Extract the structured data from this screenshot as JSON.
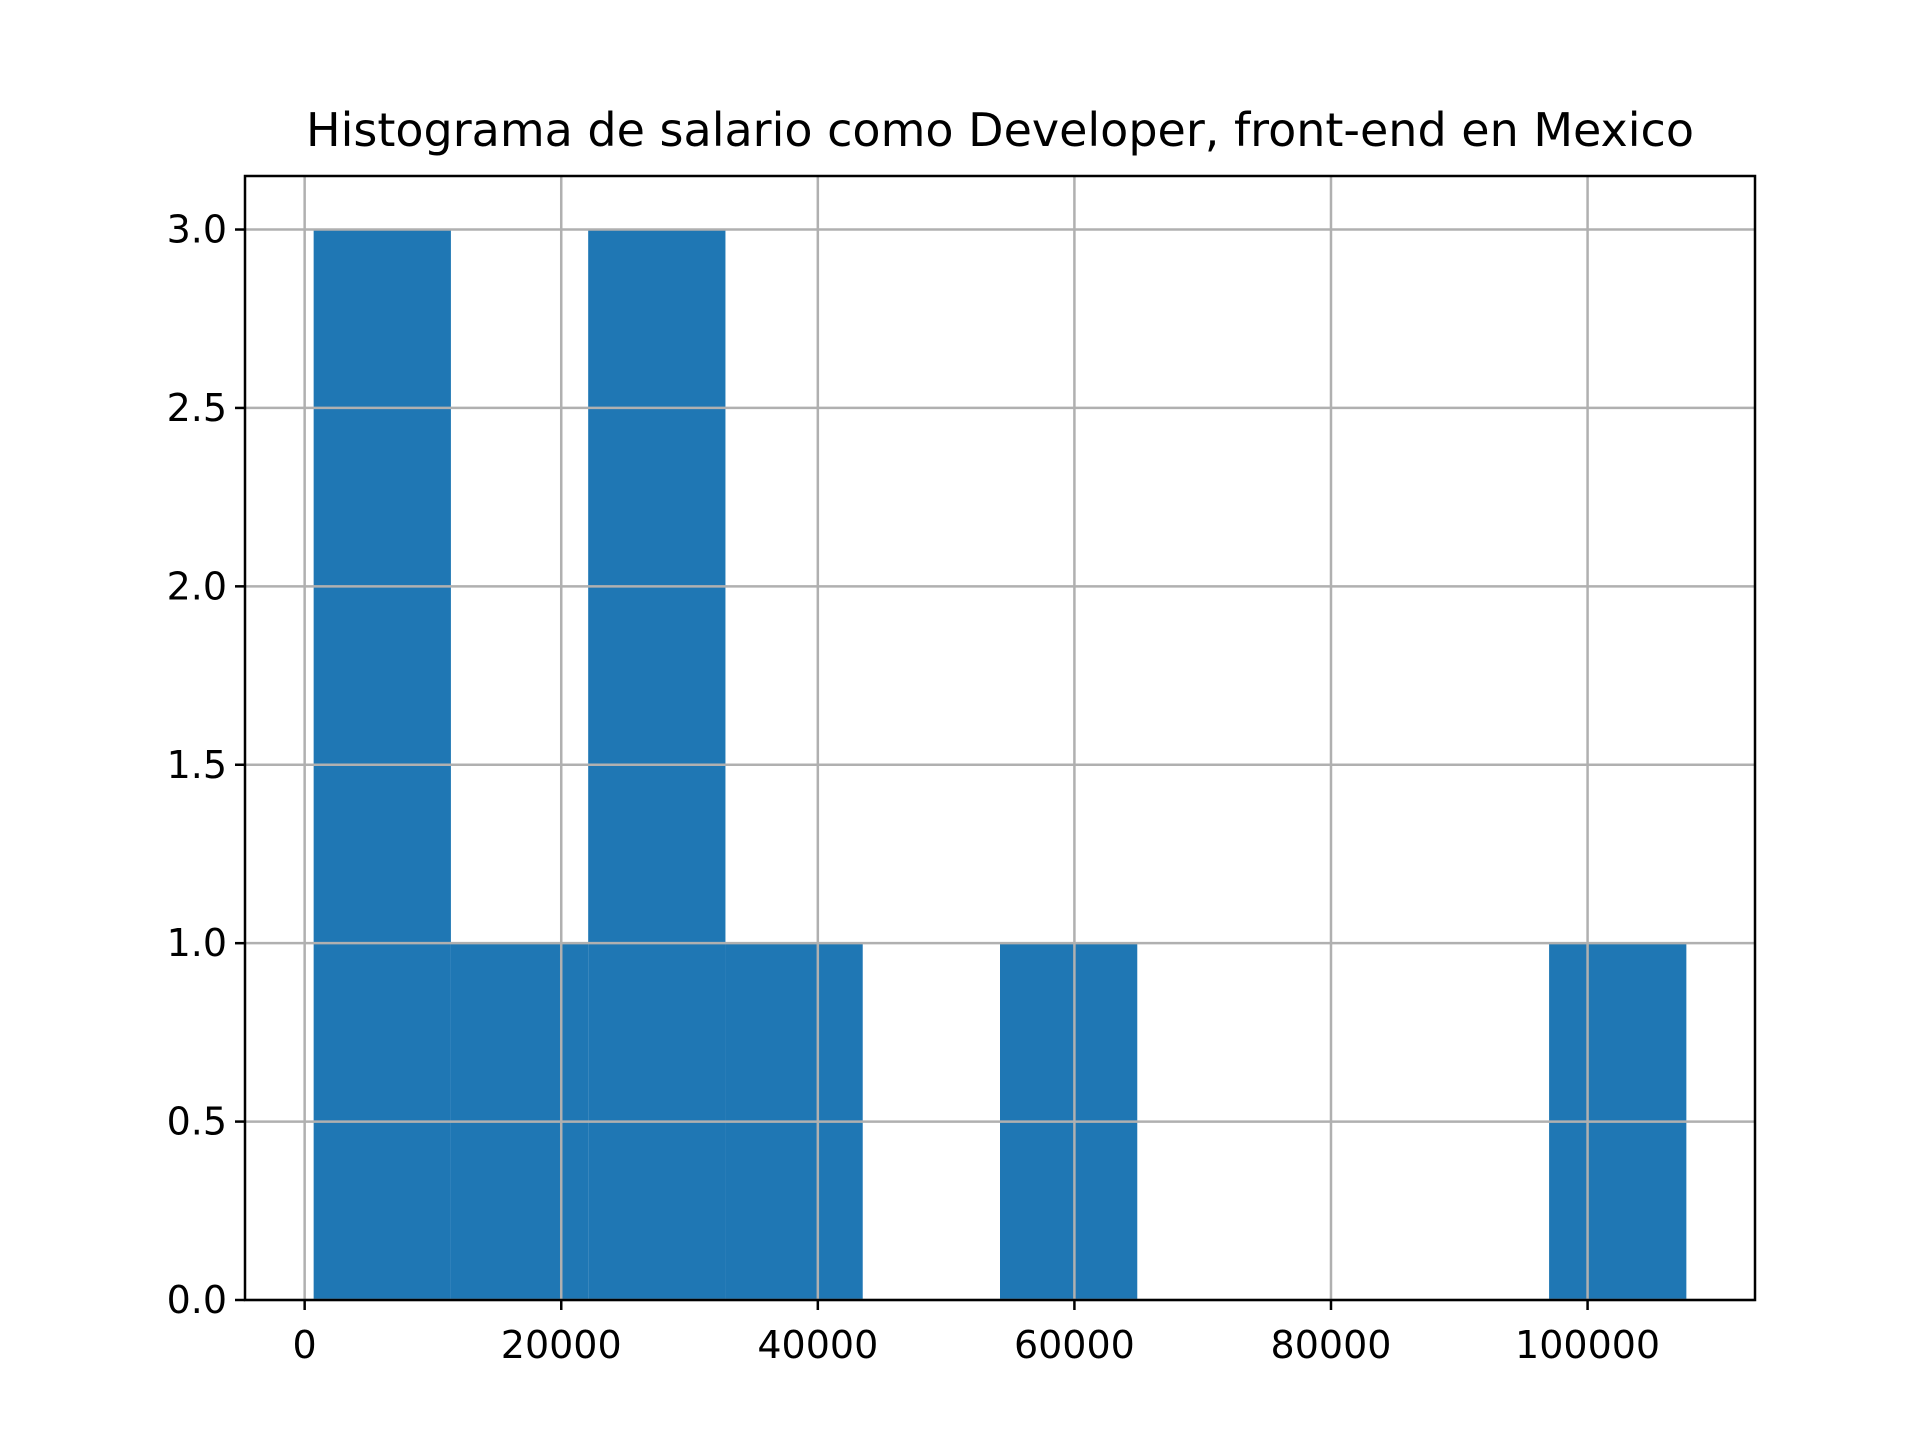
{
  "chart_data": {
    "type": "bar",
    "title": "Histograma de salario como Developer, front-end en Mexico",
    "xlabel": "",
    "ylabel": "",
    "bins": [
      {
        "x0": 700,
        "x1": 11400,
        "count": 3
      },
      {
        "x0": 11400,
        "x1": 22100,
        "count": 1
      },
      {
        "x0": 22100,
        "x1": 32800,
        "count": 3
      },
      {
        "x0": 32800,
        "x1": 43500,
        "count": 1
      },
      {
        "x0": 43500,
        "x1": 54200,
        "count": 0
      },
      {
        "x0": 54200,
        "x1": 64900,
        "count": 1
      },
      {
        "x0": 64900,
        "x1": 75600,
        "count": 0
      },
      {
        "x0": 75600,
        "x1": 86300,
        "count": 0
      },
      {
        "x0": 86300,
        "x1": 97000,
        "count": 0
      },
      {
        "x0": 97000,
        "x1": 107700,
        "count": 1
      }
    ],
    "xlim": [
      -4650,
      113050
    ],
    "ylim": [
      0,
      3.15
    ],
    "x_ticks": [
      0,
      20000,
      40000,
      60000,
      80000,
      100000
    ],
    "x_tick_labels": [
      "0",
      "20000",
      "40000",
      "60000",
      "80000",
      "100000"
    ],
    "y_ticks": [
      0,
      0.5,
      1,
      1.5,
      2,
      2.5,
      3
    ],
    "y_tick_labels": [
      "0.0",
      "0.5",
      "1.0",
      "1.5",
      "2.0",
      "2.5",
      "3.0"
    ],
    "grid": true,
    "bar_color": "#1f77b4",
    "grid_color": "#b0b0b0"
  }
}
